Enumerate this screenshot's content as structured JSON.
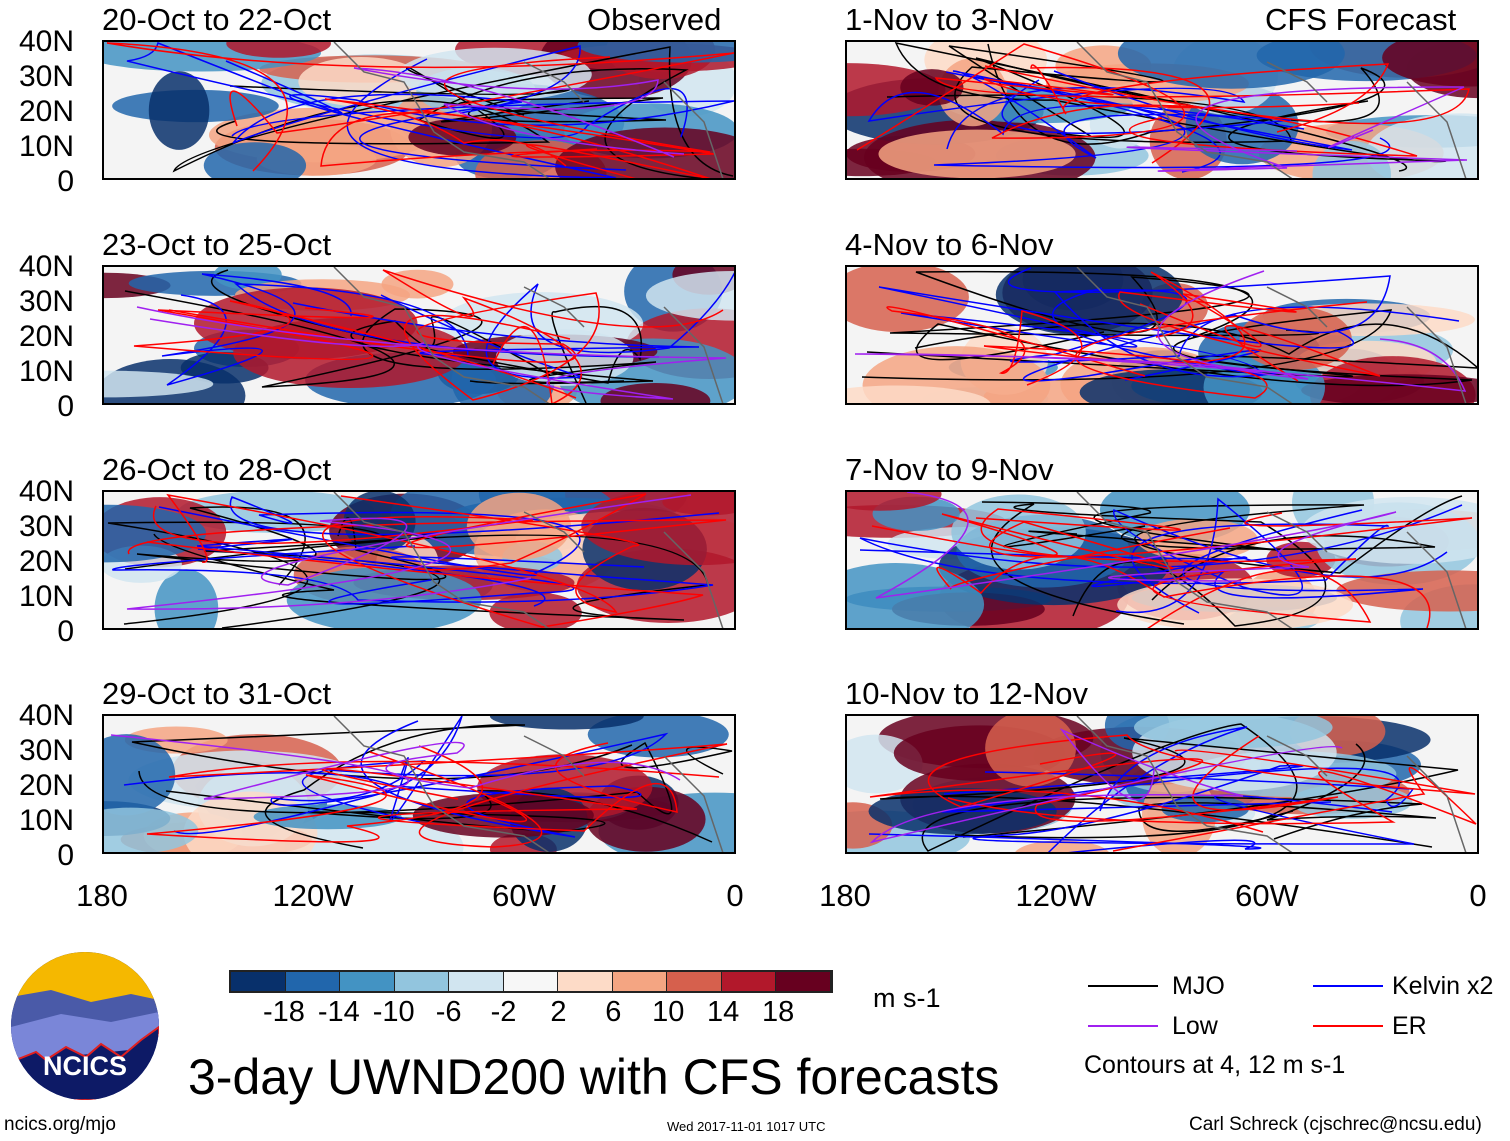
{
  "header": {
    "left_tag": "Observed",
    "right_tag": "CFS Forecast"
  },
  "panels_left": [
    {
      "title": "20-Oct to 22-Oct"
    },
    {
      "title": "23-Oct to 25-Oct"
    },
    {
      "title": "26-Oct to 28-Oct"
    },
    {
      "title": "29-Oct to 31-Oct"
    }
  ],
  "panels_right": [
    {
      "title": "1-Nov to 3-Nov"
    },
    {
      "title": "4-Nov to 6-Nov"
    },
    {
      "title": "7-Nov to 9-Nov"
    },
    {
      "title": "10-Nov to 12-Nov"
    }
  ],
  "lat_labels": [
    "40N",
    "30N",
    "20N",
    "10N",
    "0"
  ],
  "lon_labels": [
    "180",
    "120W",
    "60W",
    "0"
  ],
  "colorbar": {
    "colors": [
      "#08306b",
      "#2166ac",
      "#4393c3",
      "#92c5de",
      "#d1e5f0",
      "#f7f7f7",
      "#fddbc7",
      "#f4a582",
      "#d6604d",
      "#b2182b",
      "#67001f"
    ],
    "labels": [
      "-18",
      "-14",
      "-10",
      "-6",
      "-2",
      "2",
      "6",
      "10",
      "14",
      "18"
    ],
    "unit": "m s-1"
  },
  "legend": {
    "items": [
      {
        "label": "MJO",
        "color": "#000000"
      },
      {
        "label": "Kelvin x2",
        "color": "#0000ff"
      },
      {
        "label": "Low",
        "color": "#a020f0"
      },
      {
        "label": "ER",
        "color": "#ff0000"
      }
    ],
    "note": "Contours at 4, 12 m s-1"
  },
  "title": "3-day UWND200 with CFS forecasts",
  "footer": {
    "logo_text": "NCICS",
    "url": "ncics.org/mjo",
    "timestamp": "Wed 2017-11-01 1017 UTC",
    "credit": "Carl Schreck (cjschrec@ncsu.edu)"
  }
}
